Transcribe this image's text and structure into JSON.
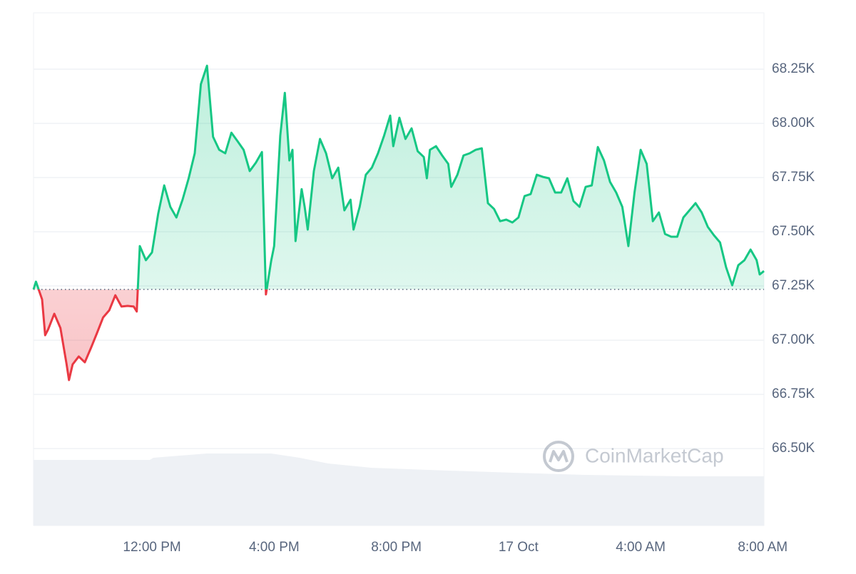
{
  "chart_data": {
    "type": "line",
    "watermark": "CoinMarketCap",
    "baseline": 67234,
    "color_up": "#16c784",
    "color_down": "#ea3943",
    "grid": true,
    "xlim": [
      8.12,
      32.04
    ],
    "xticks": [
      {
        "value": 12,
        "label": "12:00 PM"
      },
      {
        "value": 16,
        "label": "4:00 PM"
      },
      {
        "value": 20,
        "label": "8:00 PM"
      },
      {
        "value": 24,
        "label": "17 Oct"
      },
      {
        "value": 28,
        "label": "4:00 AM"
      },
      {
        "value": 32,
        "label": "8:00 AM"
      }
    ],
    "ylim": [
      66145,
      68510
    ],
    "yticks": [
      {
        "value": 66500,
        "label": "66.50K"
      },
      {
        "value": 66750,
        "label": "66.75K"
      },
      {
        "value": 67000,
        "label": "67.00K"
      },
      {
        "value": 67250,
        "label": "67.25K"
      },
      {
        "value": 67500,
        "label": "67.50K"
      },
      {
        "value": 67750,
        "label": "67.75K"
      },
      {
        "value": 68000,
        "label": "68.00K"
      },
      {
        "value": 68250,
        "label": "68.25K"
      }
    ],
    "x": [
      8.12,
      8.2,
      8.4,
      8.5,
      8.6,
      8.8,
      9.0,
      9.2,
      9.28,
      9.4,
      9.6,
      9.8,
      10.0,
      10.2,
      10.4,
      10.6,
      10.8,
      11.0,
      11.2,
      11.4,
      11.5,
      11.6,
      11.8,
      12.0,
      12.2,
      12.4,
      12.6,
      12.8,
      13.0,
      13.2,
      13.4,
      13.6,
      13.8,
      14.0,
      14.2,
      14.4,
      14.6,
      14.8,
      15.0,
      15.2,
      15.4,
      15.6,
      15.73,
      15.9,
      16.0,
      16.2,
      16.35,
      16.5,
      16.6,
      16.7,
      16.9,
      17.0,
      17.1,
      17.3,
      17.5,
      17.7,
      17.9,
      18.1,
      18.3,
      18.5,
      18.6,
      18.8,
      19.0,
      19.2,
      19.4,
      19.6,
      19.8,
      19.9,
      20.1,
      20.3,
      20.5,
      20.7,
      20.9,
      21.0,
      21.1,
      21.3,
      21.5,
      21.7,
      21.8,
      22.0,
      22.2,
      22.4,
      22.6,
      22.8,
      23.0,
      23.2,
      23.4,
      23.6,
      23.8,
      24.0,
      24.2,
      24.4,
      24.6,
      24.8,
      25.0,
      25.2,
      25.4,
      25.6,
      25.8,
      26.0,
      26.2,
      26.4,
      26.6,
      26.8,
      27.0,
      27.2,
      27.4,
      27.6,
      27.8,
      28.0,
      28.2,
      28.4,
      28.6,
      28.8,
      29.0,
      29.2,
      29.4,
      29.6,
      29.8,
      30.0,
      30.2,
      30.4,
      30.6,
      30.8,
      31.0,
      31.2,
      31.4,
      31.6,
      31.8,
      31.9,
      32.04
    ],
    "values": [
      67234,
      67270,
      67188,
      67023,
      67050,
      67122,
      67056,
      66892,
      66816,
      66888,
      66925,
      66898,
      66964,
      67033,
      67105,
      67138,
      67207,
      67155,
      67158,
      67155,
      67132,
      67434,
      67369,
      67405,
      67582,
      67714,
      67615,
      67566,
      67648,
      67747,
      67862,
      68181,
      68266,
      67938,
      67878,
      67862,
      67957,
      67918,
      67878,
      67780,
      67819,
      67868,
      67211,
      67365,
      67434,
      67944,
      68141,
      67829,
      67878,
      67457,
      67697,
      67615,
      67510,
      67780,
      67928,
      67862,
      67747,
      67796,
      67599,
      67648,
      67510,
      67615,
      67763,
      67796,
      67862,
      67944,
      68036,
      67895,
      68026,
      67928,
      67977,
      67872,
      67845,
      67747,
      67878,
      67895,
      67852,
      67813,
      67707,
      67763,
      67852,
      67862,
      67878,
      67885,
      67632,
      67605,
      67549,
      67556,
      67543,
      67566,
      67665,
      67674,
      67763,
      67753,
      67747,
      67681,
      67681,
      67747,
      67642,
      67615,
      67707,
      67714,
      67891,
      67829,
      67730,
      67681,
      67615,
      67434,
      67681,
      67878,
      67813,
      67549,
      67589,
      67490,
      67477,
      67477,
      67566,
      67599,
      67632,
      67589,
      67523,
      67484,
      67451,
      67336,
      67253,
      67346,
      67369,
      67418,
      67369,
      67303,
      67319
    ]
  }
}
